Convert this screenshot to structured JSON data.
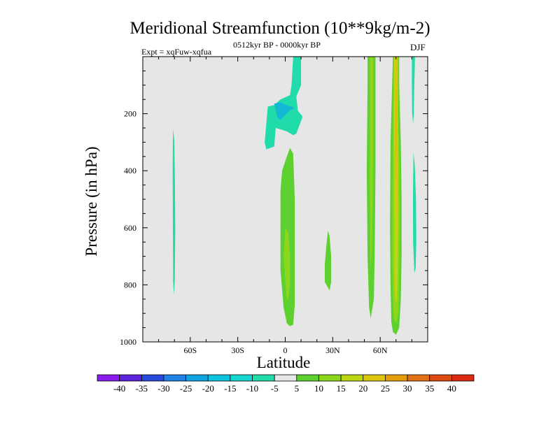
{
  "chart_data": {
    "type": "contour",
    "title": "Meridional Streamfunction (10**9kg/m-2)",
    "subtitle": "0512kyr BP - 0000kyr BP",
    "expt_label": "Expt = xqFuw-xqfua",
    "season": "DJF",
    "xlabel": "Latitude",
    "ylabel": "Pressure (in hPa)",
    "x_range": [
      -90,
      90
    ],
    "y_range": [
      0,
      1000
    ],
    "y_inverted": true,
    "x_ticks": [
      {
        "value": -60,
        "label": "60S"
      },
      {
        "value": -30,
        "label": "30S"
      },
      {
        "value": 0,
        "label": "0"
      },
      {
        "value": 30,
        "label": "30N"
      },
      {
        "value": 60,
        "label": "60N"
      }
    ],
    "y_ticks": [
      {
        "value": 200,
        "label": "200"
      },
      {
        "value": 400,
        "label": "400"
      },
      {
        "value": 600,
        "label": "600"
      },
      {
        "value": 800,
        "label": "800"
      },
      {
        "value": 1000,
        "label": "1000"
      }
    ],
    "background_color": "#e6e6e6",
    "colorbar": {
      "levels": [
        -40,
        -35,
        -30,
        -25,
        -20,
        -15,
        -10,
        -5,
        5,
        10,
        15,
        20,
        25,
        30,
        35,
        40
      ],
      "labels": [
        "-40",
        "-35",
        "-30",
        "-25",
        "-20",
        "-15",
        "-10",
        "-5",
        "5",
        "10",
        "15",
        "20",
        "25",
        "30",
        "35",
        "40"
      ],
      "colors": [
        "#8c1cee",
        "#5d22dc",
        "#2a4ade",
        "#1f82e6",
        "#10a4e0",
        "#0cc4e0",
        "#13d6d0",
        "#1fdcaa",
        "#e6e6e6",
        "#5cd130",
        "#8cd61c",
        "#bcd614",
        "#dcc60c",
        "#e49c0a",
        "#e27014",
        "#dc4a12",
        "#dc2a10"
      ]
    },
    "contour_regions": [
      {
        "name": "neg-5-band-tropics-upper",
        "interval": "-10 to -5",
        "color": "#1fdcaa",
        "polygon": [
          [
            5,
            0
          ],
          [
            10,
            0
          ],
          [
            10,
            100
          ],
          [
            7,
            140
          ],
          [
            8,
            190
          ],
          [
            11,
            210
          ],
          [
            7,
            270
          ],
          [
            5,
            275
          ],
          [
            1,
            262
          ],
          [
            -6,
            250
          ],
          [
            -7,
            315
          ],
          [
            -12,
            325
          ],
          [
            -13,
            300
          ],
          [
            -11,
            175
          ],
          [
            -7,
            170
          ],
          [
            -3,
            150
          ],
          [
            3,
            135
          ],
          [
            4,
            100
          ]
        ]
      },
      {
        "name": "neg-10-core-tropics",
        "interval": "-15 to -10",
        "color": "#13b8d2",
        "polygon": [
          [
            -7,
            165
          ],
          [
            -3,
            160
          ],
          [
            1,
            170
          ],
          [
            6,
            180
          ],
          [
            3,
            188
          ],
          [
            0,
            205
          ],
          [
            -3,
            222
          ],
          [
            -5,
            212
          ],
          [
            -6,
            190
          ]
        ]
      },
      {
        "name": "neg-5-strip-70S",
        "interval": "-10 to -5",
        "color": "#1fdcaa",
        "polygon": [
          [
            -70.8,
            255
          ],
          [
            -70.2,
            290
          ],
          [
            -69.8,
            400
          ],
          [
            -69.5,
            600
          ],
          [
            -69.8,
            780
          ],
          [
            -70.3,
            835
          ],
          [
            -70.8,
            790
          ],
          [
            -71.0,
            600
          ],
          [
            -71.1,
            400
          ],
          [
            -71.0,
            290
          ]
        ]
      },
      {
        "name": "pos-5-plume-equator",
        "interval": "5 to 10",
        "color": "#5cd130",
        "polygon": [
          [
            1,
            350
          ],
          [
            3,
            320
          ],
          [
            5,
            340
          ],
          [
            6,
            500
          ],
          [
            6,
            700
          ],
          [
            6,
            870
          ],
          [
            5,
            940
          ],
          [
            3,
            945
          ],
          [
            1,
            935
          ],
          [
            -1,
            880
          ],
          [
            -3,
            750
          ],
          [
            -3,
            600
          ],
          [
            -3,
            470
          ],
          [
            -2,
            400
          ]
        ]
      },
      {
        "name": "pos-10-core-equator",
        "interval": "10 to 15",
        "color": "#8cd61c",
        "polygon": [
          [
            0,
            600
          ],
          [
            2,
            620
          ],
          [
            3,
            700
          ],
          [
            3,
            800
          ],
          [
            2,
            850
          ],
          [
            1,
            855
          ],
          [
            0,
            790
          ],
          [
            -1,
            700
          ]
        ]
      },
      {
        "name": "pos-5-blob-25N",
        "interval": "5 to 10",
        "color": "#5cd130",
        "polygon": [
          [
            27,
            610
          ],
          [
            28,
            630
          ],
          [
            29,
            700
          ],
          [
            29,
            790
          ],
          [
            28,
            820
          ],
          [
            27,
            810
          ],
          [
            25,
            790
          ],
          [
            25,
            730
          ],
          [
            26,
            660
          ]
        ]
      },
      {
        "name": "pos-5-band-52N",
        "interval": "5 to 10",
        "color": "#5cd130",
        "polygon": [
          [
            52,
            0
          ],
          [
            57,
            0
          ],
          [
            57,
            100
          ],
          [
            57,
            400
          ],
          [
            56.5,
            700
          ],
          [
            56,
            850
          ],
          [
            54,
            918
          ],
          [
            53,
            880
          ],
          [
            52,
            700
          ],
          [
            51.5,
            400
          ],
          [
            52,
            100
          ]
        ]
      },
      {
        "name": "pos-10-band-52N",
        "interval": "10 to 15",
        "color": "#8cd61c",
        "polygon": [
          [
            53.5,
            0
          ],
          [
            55.5,
            0
          ],
          [
            55.5,
            300
          ],
          [
            55.3,
            500
          ],
          [
            55,
            600
          ],
          [
            54.5,
            700
          ],
          [
            54,
            760
          ],
          [
            53.7,
            700
          ],
          [
            53.5,
            500
          ],
          [
            53.5,
            300
          ]
        ]
      },
      {
        "name": "pos-5-band-67N",
        "interval": "5 to 10",
        "color": "#5cd130",
        "polygon": [
          [
            68,
            0
          ],
          [
            72,
            0
          ],
          [
            72,
            100
          ],
          [
            73,
            300
          ],
          [
            73.5,
            500
          ],
          [
            73.5,
            700
          ],
          [
            73,
            850
          ],
          [
            72,
            950
          ],
          [
            70,
            975
          ],
          [
            68,
            965
          ],
          [
            67,
            930
          ],
          [
            66.5,
            800
          ],
          [
            66.2,
            600
          ],
          [
            66.5,
            300
          ]
        ]
      },
      {
        "name": "pos-10-band-67N",
        "interval": "10 to 15",
        "color": "#8cd61c",
        "polygon": [
          [
            68.4,
            0
          ],
          [
            71.5,
            0
          ],
          [
            71.5,
            200
          ],
          [
            72.2,
            400
          ],
          [
            72.2,
            600
          ],
          [
            72,
            800
          ],
          [
            71.5,
            900
          ],
          [
            70,
            935
          ],
          [
            68.5,
            915
          ],
          [
            67.8,
            800
          ],
          [
            67.6,
            600
          ],
          [
            67.8,
            400
          ],
          [
            68,
            200
          ]
        ]
      },
      {
        "name": "pos-15-band-67N",
        "interval": "15 to 20",
        "color": "#bcd614",
        "polygon": [
          [
            68.8,
            0
          ],
          [
            71,
            0
          ],
          [
            71,
            200
          ],
          [
            71.3,
            400
          ],
          [
            71.3,
            600
          ],
          [
            71,
            800
          ],
          [
            70.3,
            860
          ],
          [
            69.5,
            855
          ],
          [
            69,
            800
          ],
          [
            68.8,
            600
          ],
          [
            68.8,
            400
          ],
          [
            68.7,
            200
          ]
        ]
      },
      {
        "name": "pos-20-band-67N",
        "interval": "20 to 25",
        "color": "#dcc60c",
        "polygon": [
          [
            69.2,
            0
          ],
          [
            70.6,
            0
          ],
          [
            70.5,
            150
          ],
          [
            70.8,
            350
          ],
          [
            70.8,
            500
          ],
          [
            70.4,
            560
          ],
          [
            69.9,
            560
          ],
          [
            69.5,
            500
          ],
          [
            69.4,
            350
          ],
          [
            69.3,
            150
          ]
        ]
      },
      {
        "name": "pos-25-core-67N",
        "interval": "25 to 30",
        "color": "#e4b010",
        "polygon": [
          [
            69.8,
            120
          ],
          [
            70.2,
            120
          ],
          [
            70.3,
            300
          ],
          [
            70.1,
            420
          ],
          [
            69.8,
            420
          ],
          [
            69.7,
            300
          ]
        ]
      },
      {
        "name": "neg-5-strip-80N-upper",
        "interval": "-10 to -5",
        "color": "#1fdcaa",
        "polygon": [
          [
            80,
            0
          ],
          [
            82,
            0
          ],
          [
            81.5,
            100
          ],
          [
            81.2,
            200
          ],
          [
            80.8,
            235
          ],
          [
            80.2,
            200
          ],
          [
            80,
            100
          ]
        ]
      },
      {
        "name": "neg-5-strip-80N-lower",
        "interval": "-10 to -5",
        "color": "#1fdcaa",
        "polygon": [
          [
            81,
            335
          ],
          [
            81.8,
            380
          ],
          [
            82.6,
            500
          ],
          [
            82.8,
            650
          ],
          [
            82.4,
            740
          ],
          [
            81.6,
            760
          ],
          [
            80.8,
            650
          ],
          [
            80.7,
            500
          ]
        ]
      }
    ]
  }
}
